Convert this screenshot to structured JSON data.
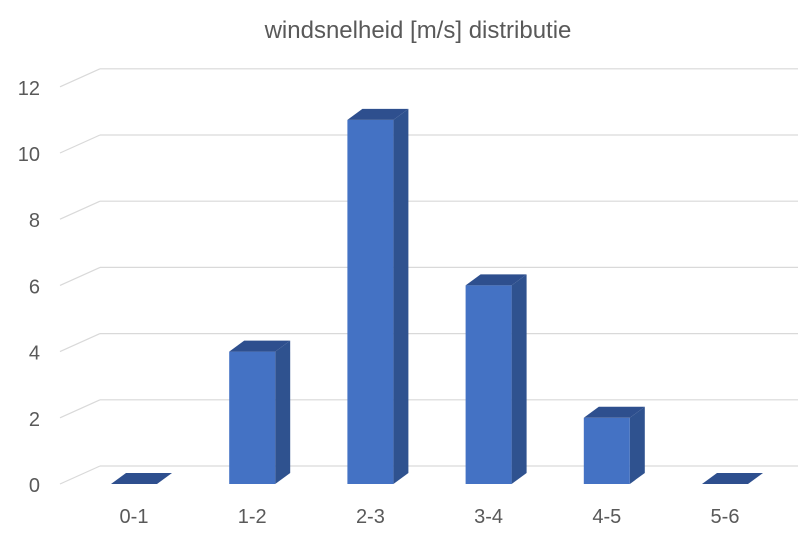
{
  "chart_data": {
    "type": "bar",
    "title": "windsnelheid [m/s] distributie",
    "xlabel": "",
    "ylabel": "",
    "categories": [
      "0-1",
      "1-2",
      "2-3",
      "3-4",
      "4-5",
      "5-6"
    ],
    "values": [
      0,
      4,
      11,
      6,
      2,
      0
    ],
    "ylim": [
      0,
      12
    ],
    "yticks": [
      "0",
      "2",
      "4",
      "6",
      "8",
      "10",
      "12"
    ],
    "grid": true,
    "legend": "none",
    "style": "3d-column",
    "colors": {
      "bar_front": "#4472C4",
      "bar_side": "#2F528F",
      "bar_top": "#2E4F8E",
      "grid": "#D9D9D9",
      "text": "#595959"
    }
  }
}
